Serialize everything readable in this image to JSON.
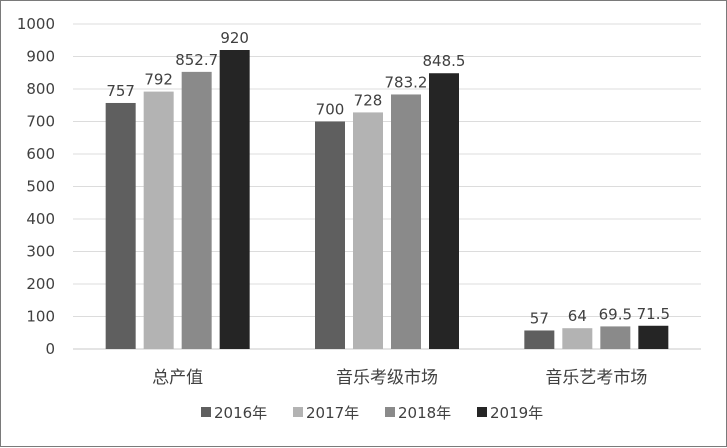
{
  "chart_data": {
    "type": "bar",
    "categories": [
      "总产值",
      "音乐考级市场",
      "音乐艺考市场"
    ],
    "series": [
      {
        "name": "2016年",
        "values": [
          757,
          700,
          57
        ],
        "color": "#5f5f5f"
      },
      {
        "name": "2017年",
        "values": [
          792,
          728,
          64
        ],
        "color": "#b3b3b3"
      },
      {
        "name": "2018年",
        "values": [
          852.7,
          783.2,
          69.5
        ],
        "color": "#8a8a8a"
      },
      {
        "name": "2019年",
        "values": [
          920,
          848.5,
          71.5
        ],
        "color": "#252525"
      }
    ],
    "title": "",
    "xlabel": "",
    "ylabel": "",
    "ylim": [
      0,
      1000
    ],
    "yticks": [
      0,
      100,
      200,
      300,
      400,
      500,
      600,
      700,
      800,
      900,
      1000
    ],
    "grid": true,
    "legend": "bottom",
    "data_labels": true
  }
}
